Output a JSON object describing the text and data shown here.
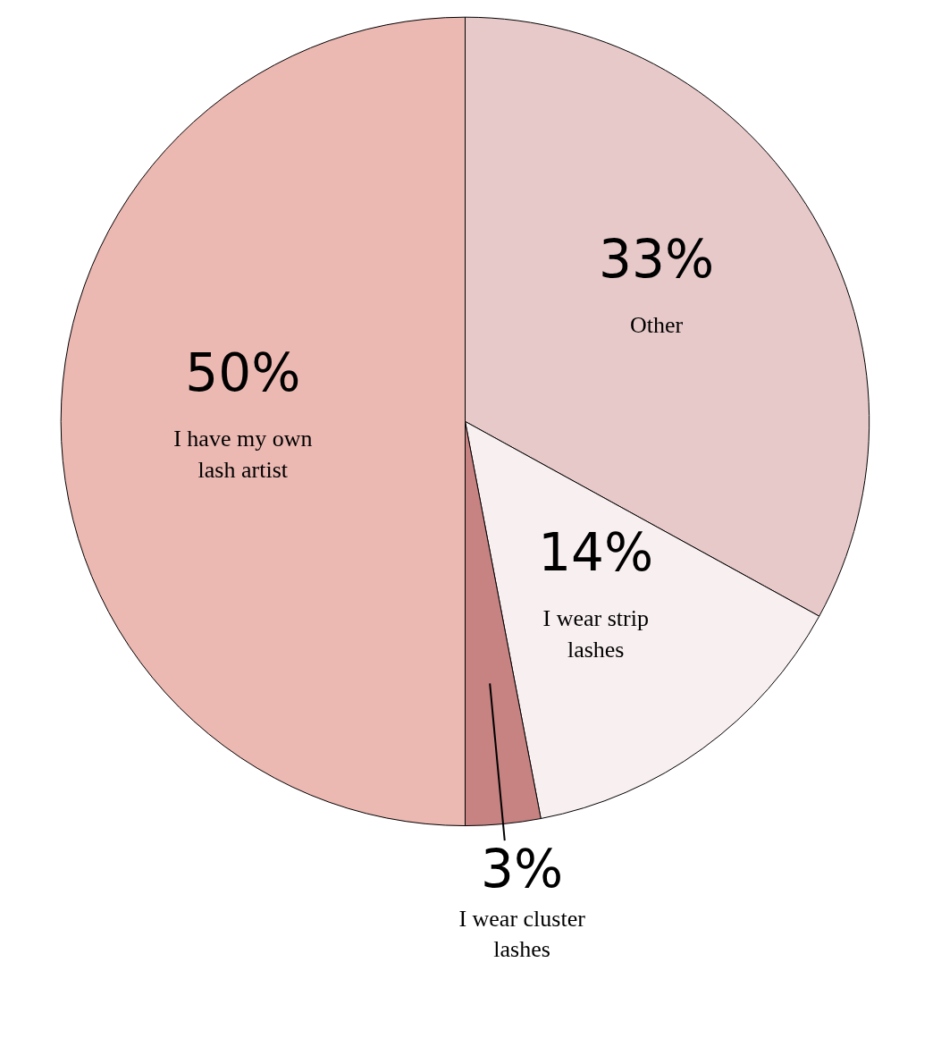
{
  "chart_data": {
    "type": "pie",
    "categories": [
      "Other",
      "I wear strip lashes",
      "I wear cluster lashes",
      "I have my own lash artist"
    ],
    "values": [
      33,
      14,
      3,
      50
    ],
    "value_labels": [
      "33%",
      "14%",
      "3%",
      "50%"
    ],
    "colors": [
      "#e8c9c9",
      "#f8eff0",
      "#c78282",
      "#ebb8b2"
    ]
  }
}
